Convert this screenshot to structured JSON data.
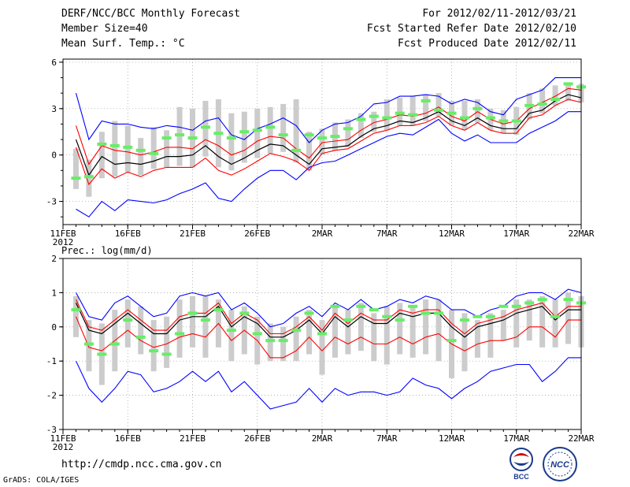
{
  "header": {
    "title": "DERF/NCC/BCC Monthly Forecast",
    "member_size": "Member Size=40",
    "variable": "Mean Surf. Temp.: °C",
    "forecast_period": "For 2012/02/11-2012/03/21",
    "start_date": "Fcst Started Refer Date 2012/02/10",
    "produced_date": "Fcst Produced Date 2012/02/11"
  },
  "footer": {
    "url": "http://cmdp.ncc.cma.gov.cn",
    "credit": "GrADS: COLA/IGES",
    "logo_bcc": "BCC",
    "logo_ncc": "NCC"
  },
  "colors": {
    "envelope": "#0000ff",
    "spread": "#ff0000",
    "mean": "#000000",
    "observed": "#66ee66",
    "box": "#cccccc"
  },
  "chart_data": [
    {
      "type": "line",
      "title": "Mean Surf. Temp.: °C",
      "ylabel": "°C",
      "ylim": [
        -4.5,
        6.2
      ],
      "yticks": [
        6,
        3,
        0,
        -3
      ],
      "x_start_day": 0,
      "x_end_day": 40,
      "xticks": [
        {
          "day": 0,
          "label": "11FEB",
          "sub": "2012"
        },
        {
          "day": 5,
          "label": "16FEB",
          "sub": ""
        },
        {
          "day": 10,
          "label": "21FEB",
          "sub": ""
        },
        {
          "day": 15,
          "label": "26FEB",
          "sub": ""
        },
        {
          "day": 20,
          "label": "2MAR",
          "sub": ""
        },
        {
          "day": 25,
          "label": "7MAR",
          "sub": ""
        },
        {
          "day": 30,
          "label": "12MAR",
          "sub": ""
        },
        {
          "day": 35,
          "label": "17MAR",
          "sub": ""
        },
        {
          "day": 40,
          "label": "22MAR",
          "sub": ""
        }
      ],
      "days": [
        1,
        2,
        3,
        4,
        5,
        6,
        7,
        8,
        9,
        10,
        11,
        12,
        13,
        14,
        15,
        16,
        17,
        18,
        19,
        20,
        21,
        22,
        23,
        24,
        25,
        26,
        27,
        28,
        29,
        30,
        31,
        32,
        33,
        34,
        35,
        36,
        37,
        38,
        39,
        40
      ],
      "series": [
        {
          "name": "max",
          "role": "envelope",
          "values": [
            4.0,
            1.0,
            2.2,
            2.0,
            2.0,
            1.8,
            1.7,
            1.9,
            1.8,
            1.6,
            2.2,
            2.4,
            1.3,
            1.0,
            1.7,
            2.0,
            2.4,
            1.9,
            0.8,
            1.6,
            2.0,
            2.1,
            2.5,
            3.3,
            3.4,
            3.8,
            3.8,
            3.9,
            3.8,
            3.3,
            3.6,
            3.4,
            2.8,
            2.6,
            3.6,
            3.9,
            4.2,
            5.0,
            5.0,
            5.0
          ]
        },
        {
          "name": "upper",
          "role": "spread",
          "values": [
            1.9,
            -0.6,
            0.6,
            0.3,
            0.2,
            0.0,
            0.2,
            0.5,
            0.5,
            0.4,
            1.0,
            0.6,
            0.0,
            0.3,
            0.9,
            1.2,
            1.1,
            0.4,
            -0.2,
            0.8,
            0.9,
            1.0,
            1.6,
            2.1,
            2.3,
            2.6,
            2.5,
            2.7,
            3.1,
            2.5,
            2.2,
            2.8,
            2.3,
            2.0,
            2.2,
            3.0,
            3.4,
            3.8,
            4.3,
            4.2
          ]
        },
        {
          "name": "mean",
          "role": "mean",
          "values": [
            1.0,
            -1.3,
            -0.1,
            -0.6,
            -0.5,
            -0.6,
            -0.4,
            -0.1,
            -0.1,
            0.0,
            0.6,
            -0.1,
            -0.6,
            -0.2,
            0.3,
            0.7,
            0.6,
            0.0,
            -0.6,
            0.4,
            0.5,
            0.6,
            1.2,
            1.7,
            1.9,
            2.2,
            2.1,
            2.4,
            2.8,
            2.2,
            1.9,
            2.4,
            1.9,
            1.7,
            1.7,
            2.7,
            2.9,
            3.5,
            3.9,
            3.7
          ]
        },
        {
          "name": "lower",
          "role": "spread",
          "values": [
            0.5,
            -1.9,
            -0.9,
            -1.5,
            -1.1,
            -1.4,
            -1.0,
            -0.8,
            -0.8,
            -0.8,
            -0.2,
            -1.0,
            -1.3,
            -0.9,
            -0.4,
            0.1,
            -0.1,
            -0.4,
            -1.0,
            0.1,
            0.3,
            0.4,
            0.9,
            1.4,
            1.6,
            1.9,
            1.9,
            2.1,
            2.5,
            1.9,
            1.6,
            2.1,
            1.6,
            1.4,
            1.4,
            2.4,
            2.6,
            3.2,
            3.6,
            3.4
          ]
        },
        {
          "name": "min",
          "role": "envelope",
          "values": [
            -3.5,
            -4.0,
            -3.0,
            -3.6,
            -2.9,
            -3.0,
            -3.1,
            -2.9,
            -2.5,
            -2.2,
            -1.8,
            -2.8,
            -3.0,
            -2.2,
            -1.5,
            -1.0,
            -1.0,
            -1.6,
            -0.8,
            -0.5,
            -0.4,
            0.0,
            0.4,
            0.8,
            1.2,
            1.4,
            1.3,
            1.8,
            2.3,
            1.4,
            0.9,
            1.3,
            0.8,
            0.8,
            0.8,
            1.4,
            1.8,
            2.2,
            2.8,
            2.8
          ]
        },
        {
          "name": "observed",
          "role": "observed",
          "values": [
            -1.5,
            -1.4,
            0.7,
            0.6,
            0.5,
            0.3,
            0.1,
            1.1,
            1.3,
            1.1,
            1.8,
            1.4,
            1.1,
            1.5,
            1.6,
            1.8,
            1.3,
            0.3,
            1.3,
            1.1,
            1.2,
            1.7,
            2.3,
            2.5,
            2.4,
            2.7,
            2.6,
            3.5,
            2.9,
            2.7,
            2.4,
            3.0,
            2.4,
            2.2,
            2.2,
            3.2,
            3.3,
            3.6,
            4.6,
            4.4
          ]
        },
        {
          "name": "box_high",
          "role": "box",
          "values": [
            0.4,
            -0.3,
            1.5,
            2.2,
            1.9,
            1.1,
            1.8,
            1.6,
            3.1,
            3.0,
            3.5,
            3.6,
            2.7,
            2.8,
            3.0,
            3.1,
            3.3,
            3.6,
            1.5,
            1.7,
            2.1,
            2.3,
            2.7,
            2.8,
            3.6,
            3.7,
            3.8,
            3.9,
            4.0,
            3.5,
            3.5,
            3.6,
            3.0,
            2.9,
            3.1,
            4.0,
            4.3,
            4.5,
            4.6,
            4.6
          ]
        },
        {
          "name": "box_low",
          "role": "box",
          "values": [
            -2.2,
            -2.7,
            -1.5,
            -1.4,
            -1.1,
            -1.3,
            -0.9,
            -0.8,
            -0.7,
            -0.8,
            -0.1,
            -0.8,
            -1.0,
            -0.5,
            -0.2,
            0.1,
            0.2,
            -0.5,
            -1.0,
            0.0,
            0.3,
            0.5,
            1.1,
            1.5,
            1.6,
            1.9,
            1.9,
            2.2,
            2.5,
            1.9,
            1.6,
            2.1,
            1.6,
            1.4,
            1.3,
            2.3,
            2.7,
            3.2,
            3.5,
            3.4
          ]
        }
      ]
    },
    {
      "type": "line",
      "title": "Prec.: log(mm/d)",
      "ylabel": "log(mm/d)",
      "ylim": [
        -3,
        2
      ],
      "yticks": [
        2,
        1,
        0,
        -1,
        -2,
        -3
      ],
      "x_start_day": 0,
      "x_end_day": 40,
      "xticks": [
        {
          "day": 0,
          "label": "11FEB",
          "sub": "2012"
        },
        {
          "day": 5,
          "label": "16FEB",
          "sub": ""
        },
        {
          "day": 10,
          "label": "21FEB",
          "sub": ""
        },
        {
          "day": 15,
          "label": "26FEB",
          "sub": ""
        },
        {
          "day": 20,
          "label": "2MAR",
          "sub": ""
        },
        {
          "day": 25,
          "label": "7MAR",
          "sub": ""
        },
        {
          "day": 30,
          "label": "12MAR",
          "sub": ""
        },
        {
          "day": 35,
          "label": "17MAR",
          "sub": ""
        },
        {
          "day": 40,
          "label": "22MAR",
          "sub": ""
        }
      ],
      "days": [
        1,
        2,
        3,
        4,
        5,
        6,
        7,
        8,
        9,
        10,
        11,
        12,
        13,
        14,
        15,
        16,
        17,
        18,
        19,
        20,
        21,
        22,
        23,
        24,
        25,
        26,
        27,
        28,
        29,
        30,
        31,
        32,
        33,
        34,
        35,
        36,
        37,
        38,
        39,
        40
      ],
      "series": [
        {
          "name": "max",
          "role": "envelope",
          "values": [
            1.0,
            0.3,
            0.2,
            0.7,
            0.9,
            0.6,
            0.3,
            0.4,
            0.9,
            1.0,
            0.9,
            1.0,
            0.5,
            0.7,
            0.4,
            0.0,
            0.1,
            0.4,
            0.6,
            0.3,
            0.7,
            0.5,
            0.8,
            0.5,
            0.6,
            0.8,
            0.7,
            0.9,
            0.8,
            0.5,
            0.5,
            0.3,
            0.5,
            0.6,
            0.9,
            1.0,
            1.0,
            0.8,
            1.1,
            1.0
          ]
        },
        {
          "name": "upper",
          "role": "spread",
          "values": [
            0.8,
            0.0,
            -0.1,
            0.2,
            0.5,
            0.2,
            -0.1,
            -0.1,
            0.3,
            0.4,
            0.4,
            0.7,
            0.1,
            0.4,
            0.2,
            -0.2,
            -0.2,
            0.0,
            0.3,
            -0.1,
            0.4,
            0.1,
            0.4,
            0.2,
            0.2,
            0.5,
            0.4,
            0.5,
            0.5,
            0.1,
            -0.2,
            0.1,
            0.2,
            0.3,
            0.5,
            0.6,
            0.7,
            0.3,
            0.6,
            0.6
          ]
        },
        {
          "name": "mean",
          "role": "mean",
          "values": [
            0.7,
            -0.1,
            -0.2,
            0.1,
            0.4,
            0.1,
            -0.2,
            -0.2,
            0.2,
            0.3,
            0.3,
            0.6,
            0.0,
            0.3,
            0.1,
            -0.3,
            -0.3,
            -0.1,
            0.2,
            -0.2,
            0.3,
            0.0,
            0.3,
            0.1,
            0.1,
            0.4,
            0.3,
            0.4,
            0.4,
            0.0,
            -0.3,
            0.0,
            0.1,
            0.2,
            0.4,
            0.5,
            0.6,
            0.2,
            0.5,
            0.5
          ]
        },
        {
          "name": "lower",
          "role": "spread",
          "values": [
            0.3,
            -0.6,
            -0.7,
            -0.4,
            -0.1,
            -0.4,
            -0.6,
            -0.5,
            -0.3,
            -0.2,
            -0.3,
            0.1,
            -0.4,
            -0.1,
            -0.4,
            -0.9,
            -0.9,
            -0.7,
            -0.3,
            -0.7,
            -0.3,
            -0.5,
            -0.3,
            -0.5,
            -0.5,
            -0.3,
            -0.5,
            -0.3,
            -0.2,
            -0.5,
            -0.7,
            -0.5,
            -0.4,
            -0.4,
            -0.3,
            0.0,
            0.0,
            -0.3,
            0.2,
            0.2
          ]
        },
        {
          "name": "min",
          "role": "envelope",
          "values": [
            -1.0,
            -1.8,
            -2.2,
            -1.8,
            -1.3,
            -1.4,
            -1.9,
            -1.8,
            -1.6,
            -1.3,
            -1.6,
            -1.3,
            -1.9,
            -1.6,
            -2.0,
            -2.4,
            -2.3,
            -2.2,
            -1.8,
            -2.2,
            -1.8,
            -2.0,
            -1.9,
            -1.9,
            -2.0,
            -1.9,
            -1.5,
            -1.7,
            -1.8,
            -2.1,
            -1.8,
            -1.6,
            -1.3,
            -1.2,
            -1.1,
            -1.1,
            -1.6,
            -1.3,
            -0.9,
            -0.9
          ]
        },
        {
          "name": "observed",
          "role": "observed",
          "values": [
            0.5,
            -0.5,
            -0.8,
            -0.5,
            0.2,
            -0.3,
            -0.7,
            -0.8,
            -0.2,
            0.4,
            0.2,
            0.5,
            -0.1,
            0.4,
            -0.2,
            -0.4,
            -0.4,
            -0.1,
            0.4,
            -0.2,
            0.6,
            0.2,
            0.6,
            0.5,
            0.3,
            0.2,
            0.6,
            0.4,
            0.4,
            -0.4,
            0.2,
            0.3,
            0.3,
            0.6,
            0.6,
            0.7,
            0.8,
            0.3,
            0.8,
            0.7
          ]
        },
        {
          "name": "box_high",
          "role": "box",
          "values": [
            0.9,
            0.2,
            0.1,
            0.5,
            0.8,
            0.6,
            0.2,
            0.3,
            0.8,
            0.9,
            0.9,
            0.8,
            0.5,
            0.6,
            0.3,
            0.1,
            0.0,
            0.3,
            0.5,
            0.2,
            0.6,
            0.5,
            0.7,
            0.4,
            0.6,
            0.7,
            0.6,
            0.8,
            0.8,
            0.5,
            0.4,
            0.2,
            0.4,
            0.5,
            0.8,
            0.8,
            0.9,
            0.8,
            1.0,
            0.9
          ]
        },
        {
          "name": "box_low",
          "role": "box",
          "values": [
            -0.3,
            -1.3,
            -1.7,
            -1.3,
            -0.6,
            -0.8,
            -1.3,
            -1.2,
            -0.9,
            -0.6,
            -0.9,
            -0.6,
            -1.0,
            -0.8,
            -1.1,
            -1.0,
            -1.0,
            -1.0,
            -0.8,
            -1.4,
            -0.9,
            -0.8,
            -0.7,
            -1.0,
            -1.1,
            -0.8,
            -0.9,
            -0.8,
            -1.0,
            -1.5,
            -1.3,
            -0.9,
            -0.9,
            -0.4,
            -0.6,
            -0.4,
            -0.6,
            -0.6,
            -0.5,
            -0.6
          ]
        }
      ]
    }
  ]
}
